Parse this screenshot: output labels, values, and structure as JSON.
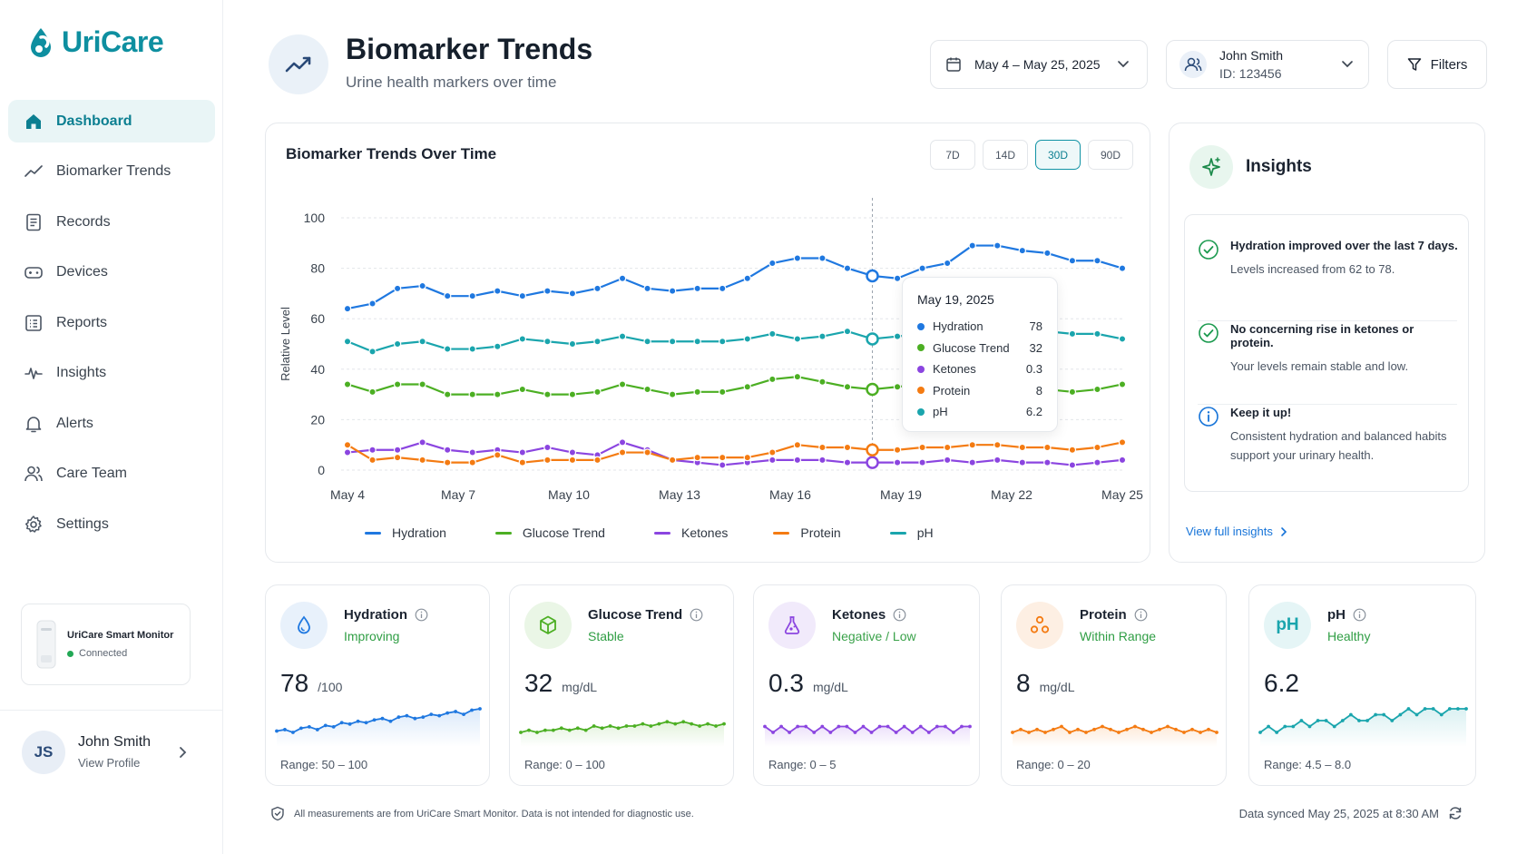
{
  "app": {
    "name": "UriCare"
  },
  "sidebar": {
    "items": [
      {
        "label": "Dashboard",
        "icon": "home-icon",
        "active": true
      },
      {
        "label": "Biomarker Trends",
        "icon": "trend-icon"
      },
      {
        "label": "Records",
        "icon": "document-icon"
      },
      {
        "label": "Devices",
        "icon": "device-icon"
      },
      {
        "label": "Reports",
        "icon": "report-icon"
      },
      {
        "label": "Insights",
        "icon": "pulse-icon"
      },
      {
        "label": "Alerts",
        "icon": "bell-icon"
      },
      {
        "label": "Care Team",
        "icon": "users-icon"
      },
      {
        "label": "Settings",
        "icon": "gear-icon"
      }
    ],
    "device": {
      "name": "UriCare Smart Monitor",
      "status": "Connected"
    },
    "profile": {
      "initials": "JS",
      "name": "John Smith",
      "link": "View Profile"
    }
  },
  "header": {
    "title": "Biomarker Trends",
    "subtitle": "Urine health markers over time",
    "date_range": "May 4 – May 25, 2025",
    "patient_name": "John Smith",
    "patient_id": "ID: 123456",
    "filters_label": "Filters"
  },
  "chart": {
    "title": "Biomarker Trends Over Time",
    "ranges": [
      {
        "label": "7D"
      },
      {
        "label": "14D"
      },
      {
        "label": "30D",
        "active": true
      },
      {
        "label": "90D"
      }
    ],
    "tooltip": {
      "date": "May 19, 2025",
      "rows": [
        {
          "name": "Hydration",
          "value": "78"
        },
        {
          "name": "Glucose Trend",
          "value": "32"
        },
        {
          "name": "Ketones",
          "value": "0.3"
        },
        {
          "name": "Protein",
          "value": "8"
        },
        {
          "name": "pH",
          "value": "6.2"
        }
      ]
    }
  },
  "chart_data": {
    "type": "line",
    "ylabel": "Relative Level",
    "ylim": [
      0,
      100
    ],
    "yticks": [
      "0",
      "20",
      "40",
      "60",
      "80",
      "100"
    ],
    "xticks": [
      "May 4",
      "May 7",
      "May 10",
      "May 13",
      "May 16",
      "May 19",
      "May 22",
      "May 25"
    ],
    "xrange": [
      0,
      31
    ],
    "grid": true,
    "legend_position": "bottom",
    "highlight_index": 21,
    "series": [
      {
        "name": "Hydration",
        "color": "#1f78e0",
        "values": [
          64,
          66,
          72,
          73,
          69,
          69,
          71,
          69,
          71,
          70,
          72,
          76,
          72,
          71,
          72,
          72,
          76,
          82,
          84,
          84,
          80,
          77,
          76,
          80,
          82,
          89,
          89,
          87,
          86,
          83,
          83,
          80
        ]
      },
      {
        "name": "Glucose Trend",
        "color": "#4caf23",
        "values": [
          34,
          31,
          34,
          34,
          30,
          30,
          30,
          32,
          30,
          30,
          31,
          34,
          32,
          30,
          31,
          31,
          33,
          36,
          37,
          35,
          33,
          32,
          33,
          34,
          35,
          33,
          33,
          33,
          32,
          31,
          32,
          34
        ]
      },
      {
        "name": "Ketones",
        "color": "#8b45e0",
        "values": [
          7,
          8,
          8,
          11,
          8,
          7,
          8,
          7,
          9,
          7,
          6,
          11,
          8,
          4,
          3,
          2,
          3,
          4,
          4,
          4,
          3,
          3,
          3,
          3,
          4,
          3,
          4,
          3,
          3,
          2,
          3,
          4
        ]
      },
      {
        "name": "Protein",
        "color": "#f47b12",
        "values": [
          10,
          4,
          5,
          4,
          3,
          3,
          6,
          3,
          4,
          4,
          4,
          7,
          7,
          4,
          5,
          5,
          5,
          7,
          10,
          9,
          9,
          8,
          8,
          9,
          9,
          10,
          10,
          9,
          9,
          8,
          9,
          11
        ]
      },
      {
        "name": "pH",
        "color": "#1aa5ad",
        "values": [
          51,
          47,
          50,
          51,
          48,
          48,
          49,
          52,
          51,
          50,
          51,
          53,
          51,
          51,
          51,
          51,
          52,
          54,
          52,
          53,
          55,
          52,
          53,
          54,
          55,
          55,
          55,
          55,
          55,
          54,
          54,
          52
        ]
      }
    ]
  },
  "insights": {
    "title": "Insights",
    "items": [
      {
        "title": "Hydration improved over the last 7 days.",
        "text": "Levels increased from 62 to 78.",
        "icon": "check-circle-icon"
      },
      {
        "title": "No concerning rise in ketones or protein.",
        "text": "Your levels remain stable and low.",
        "icon": "check-circle-icon"
      },
      {
        "title": "Keep it up!",
        "text": "Consistent hydration and balanced habits support your urinary health.",
        "icon": "info-icon"
      }
    ],
    "link": "View full insights"
  },
  "metrics": [
    {
      "name": "Hydration",
      "status": "Improving",
      "value": "78",
      "unit": "/100",
      "range": "Range: 50 – 100",
      "color": "#1f78e0",
      "bg": "#e8f1fb",
      "icon": "droplet-icon",
      "spark": [
        62,
        63,
        61,
        64,
        65,
        63,
        66,
        65,
        68,
        67,
        69,
        68,
        70,
        71,
        69,
        72,
        73,
        71,
        72,
        74,
        73,
        75,
        76,
        74,
        77,
        78
      ]
    },
    {
      "name": "Glucose Trend",
      "status": "Stable",
      "value": "32",
      "unit": "mg/dL",
      "range": "Range: 0 – 100",
      "color": "#4caf23",
      "bg": "#eaf6e6",
      "icon": "cube-icon",
      "spark": [
        30,
        31,
        30,
        31,
        31,
        32,
        31,
        32,
        31,
        33,
        32,
        33,
        32,
        33,
        33,
        34,
        33,
        34,
        35,
        34,
        35,
        34,
        33,
        34,
        33,
        34
      ]
    },
    {
      "name": "Ketones",
      "status": "Negative / Low",
      "value": "0.3",
      "unit": "mg/dL",
      "range": "Range: 0 – 5",
      "color": "#8b45e0",
      "bg": "#f1eafb",
      "icon": "drop-flask-icon",
      "spark": [
        3,
        2,
        3,
        2,
        3,
        3,
        2,
        3,
        2,
        3,
        3,
        2,
        3,
        2,
        3,
        3,
        2,
        3,
        2,
        3,
        2,
        3,
        3,
        2,
        3,
        3
      ]
    },
    {
      "name": "Protein",
      "status": "Within Range",
      "value": "8",
      "unit": "mg/dL",
      "range": "Range: 0 – 20",
      "color": "#f47b12",
      "bg": "#fdefe3",
      "icon": "molecule-icon",
      "spark": [
        5,
        6,
        5,
        6,
        5,
        6,
        7,
        5,
        6,
        5,
        6,
        7,
        6,
        5,
        6,
        7,
        6,
        5,
        6,
        7,
        6,
        5,
        6,
        5,
        6,
        5
      ]
    },
    {
      "name": "pH",
      "status": "Healthy",
      "value": "6.2",
      "unit": "",
      "range": "Range: 4.5 – 8.0",
      "color": "#1aa5ad",
      "bg": "#e5f5f6",
      "icon": "ph-icon",
      "spark": [
        5.8,
        5.9,
        5.8,
        5.9,
        5.9,
        6.0,
        5.9,
        6.0,
        6.0,
        5.9,
        6.0,
        6.1,
        6.0,
        6.0,
        6.1,
        6.1,
        6.0,
        6.1,
        6.2,
        6.1,
        6.2,
        6.2,
        6.1,
        6.2,
        6.2,
        6.2
      ]
    }
  ],
  "footer": {
    "note": "All measurements are from UriCare Smart Monitor. Data is not intended for diagnostic use.",
    "sync": "Data synced May 25, 2025 at 8:30 AM"
  }
}
